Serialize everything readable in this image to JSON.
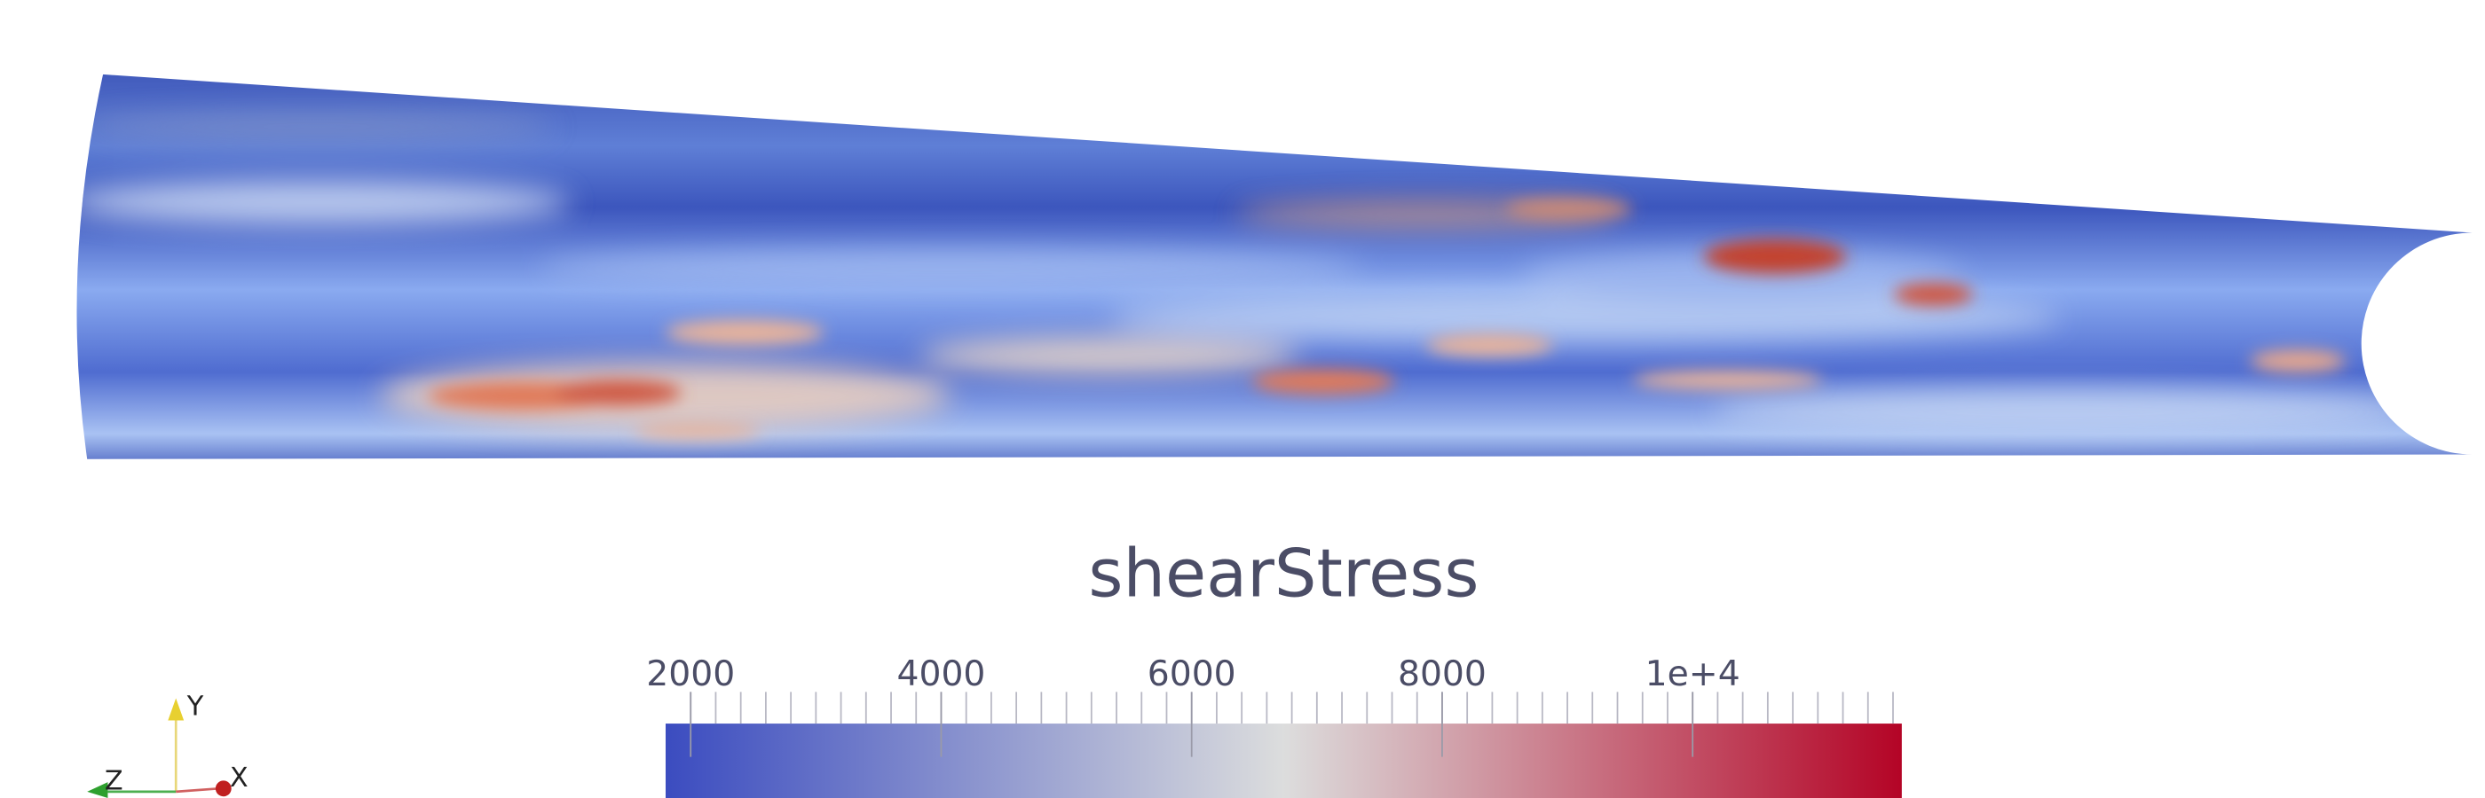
{
  "colorbar": {
    "title": "shearStress",
    "range": [
      1800,
      11670
    ],
    "ticks": [
      2000,
      4000,
      6000,
      8000,
      {
        "value": 10000,
        "label": "1e+4"
      }
    ],
    "colors": [
      "#3b4cc0",
      "#dcdddd",
      "#b40426"
    ]
  },
  "axes": {
    "labels": [
      "Y",
      "Z",
      "X"
    ]
  }
}
